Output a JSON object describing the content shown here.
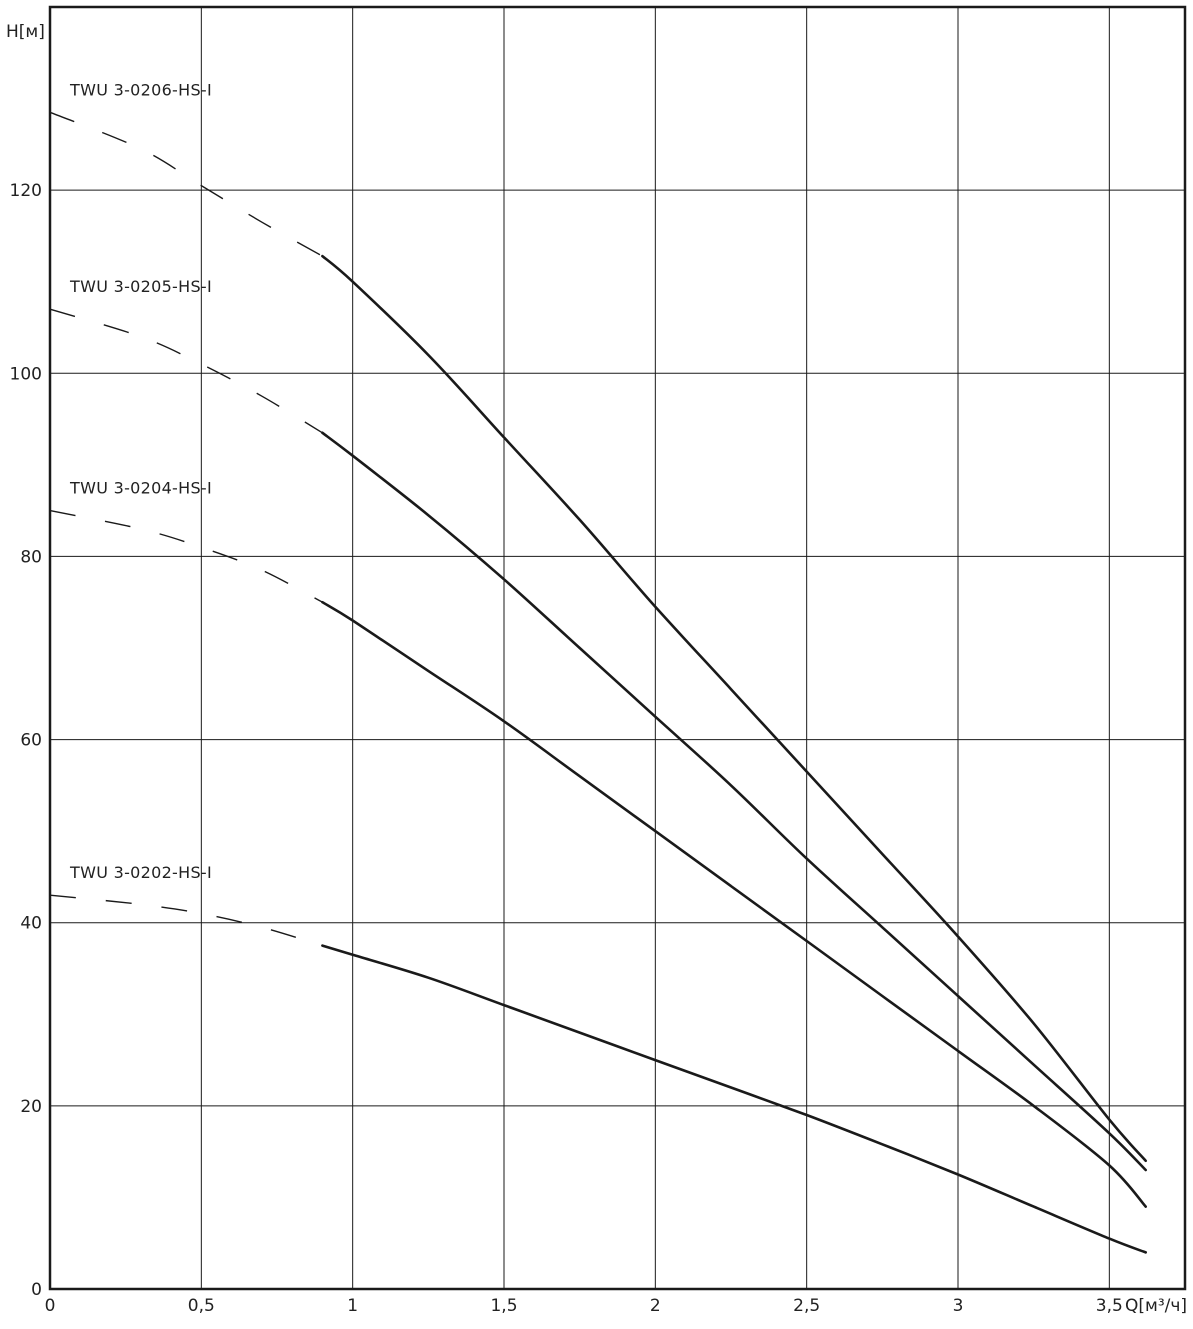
{
  "chart_data": {
    "type": "line",
    "xlabel": "Q[м³/ч]",
    "ylabel": "H[м]",
    "xlim": [
      0,
      3.75
    ],
    "ylim": [
      0,
      140
    ],
    "x_ticks": [
      {
        "value": 0,
        "label": "0"
      },
      {
        "value": 0.5,
        "label": "0,5"
      },
      {
        "value": 1,
        "label": "1"
      },
      {
        "value": 1.5,
        "label": "1,5"
      },
      {
        "value": 2,
        "label": "2"
      },
      {
        "value": 2.5,
        "label": "2,5"
      },
      {
        "value": 3,
        "label": "3"
      },
      {
        "value": 3.5,
        "label": "3,5"
      }
    ],
    "y_ticks": [
      {
        "value": 0,
        "label": "0"
      },
      {
        "value": 20,
        "label": "20"
      },
      {
        "value": 40,
        "label": "40"
      },
      {
        "value": 60,
        "label": "60"
      },
      {
        "value": 80,
        "label": "80"
      },
      {
        "value": 100,
        "label": "100"
      },
      {
        "value": 120,
        "label": "120"
      }
    ],
    "grid": true,
    "colors": {
      "line": "#1a1a1a",
      "grid": "#1a1a1a",
      "text": "#222222"
    },
    "series": [
      {
        "name": "TWU 3-0206-HS-I",
        "dashed": [
          [
            0,
            128.5
          ],
          [
            0.3,
            124.5
          ],
          [
            0.5,
            120.5
          ],
          [
            0.7,
            116.5
          ],
          [
            0.9,
            112.8
          ]
        ],
        "solid": [
          [
            0.9,
            112.8
          ],
          [
            1,
            110
          ],
          [
            1.25,
            102
          ],
          [
            1.5,
            93
          ],
          [
            1.75,
            84
          ],
          [
            2,
            74.5
          ],
          [
            2.25,
            65.5
          ],
          [
            2.5,
            56.5
          ],
          [
            2.75,
            47.5
          ],
          [
            3,
            38.5
          ],
          [
            3.25,
            29
          ],
          [
            3.5,
            18.5
          ],
          [
            3.62,
            14
          ]
        ]
      },
      {
        "name": "TWU 3-0205-HS-I",
        "dashed": [
          [
            0,
            107
          ],
          [
            0.3,
            104
          ],
          [
            0.5,
            101
          ],
          [
            0.7,
            97.5
          ],
          [
            0.9,
            93.5
          ]
        ],
        "solid": [
          [
            0.9,
            93.5
          ],
          [
            1,
            91
          ],
          [
            1.25,
            84.5
          ],
          [
            1.5,
            77.5
          ],
          [
            1.75,
            70
          ],
          [
            2,
            62.5
          ],
          [
            2.25,
            55
          ],
          [
            2.5,
            47
          ],
          [
            2.75,
            39.5
          ],
          [
            3,
            32
          ],
          [
            3.25,
            24.5
          ],
          [
            3.5,
            17
          ],
          [
            3.62,
            13
          ]
        ]
      },
      {
        "name": "TWU 3-0204-HS-I",
        "dashed": [
          [
            0,
            85
          ],
          [
            0.3,
            83
          ],
          [
            0.5,
            81
          ],
          [
            0.7,
            78.5
          ],
          [
            0.9,
            75
          ]
        ],
        "solid": [
          [
            0.9,
            75
          ],
          [
            1,
            73
          ],
          [
            1.25,
            67.5
          ],
          [
            1.5,
            62
          ],
          [
            1.75,
            56
          ],
          [
            2,
            50
          ],
          [
            2.25,
            44
          ],
          [
            2.5,
            38
          ],
          [
            2.75,
            32
          ],
          [
            3,
            26
          ],
          [
            3.25,
            20
          ],
          [
            3.5,
            13.5
          ],
          [
            3.62,
            9
          ]
        ]
      },
      {
        "name": "TWU 3-0202-HS-I",
        "dashed": [
          [
            0,
            43
          ],
          [
            0.3,
            42
          ],
          [
            0.5,
            41
          ],
          [
            0.7,
            39.5
          ],
          [
            0.9,
            37.5
          ]
        ],
        "solid": [
          [
            0.9,
            37.5
          ],
          [
            1,
            36.5
          ],
          [
            1.25,
            34
          ],
          [
            1.5,
            31
          ],
          [
            1.75,
            28
          ],
          [
            2,
            25
          ],
          [
            2.25,
            22
          ],
          [
            2.5,
            19
          ],
          [
            2.75,
            15.8
          ],
          [
            3,
            12.5
          ],
          [
            3.25,
            9
          ],
          [
            3.5,
            5.5
          ],
          [
            3.62,
            4
          ]
        ]
      }
    ]
  }
}
